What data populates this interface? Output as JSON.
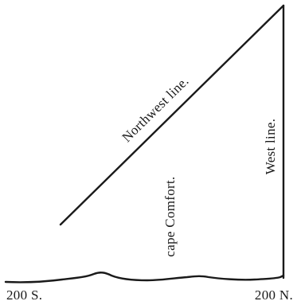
{
  "diagram": {
    "labels": {
      "northwest_line": "Northwest line.",
      "west_line": "West line.",
      "cape_comfort": "cape Comfort.",
      "south_point": "200 S.",
      "north_point": "200 N."
    },
    "colors": {
      "ink": "#1a1a1a",
      "background": "#ffffff"
    }
  }
}
